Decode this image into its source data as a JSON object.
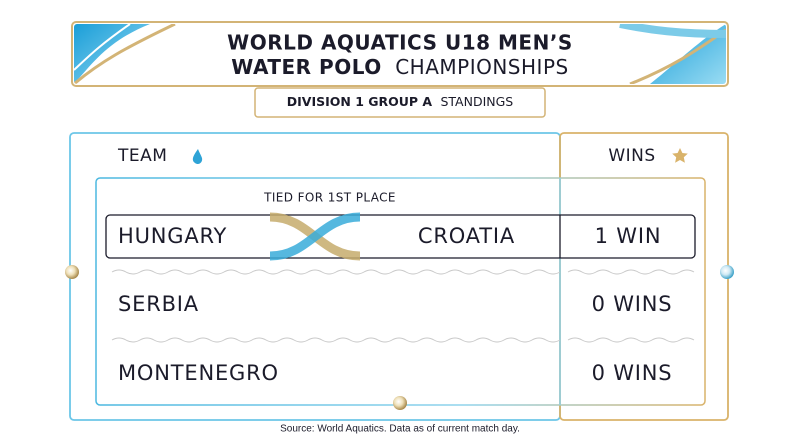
{
  "header": {
    "title_line_1": "WORLD AQUATICS U18 MEN’S",
    "title_line_2_bold": "WATER POLO",
    "title_line_2_light": "CHAMPIONSHIPS",
    "subtitle_bold": "DIVISION 1 GROUP A",
    "subtitle_light": "STANDINGS"
  },
  "table": {
    "headers": [
      "TEAM",
      "WINS"
    ],
    "note": "TIED FOR 1ST PLACE",
    "rows": [
      {
        "teams": [
          "HUNGARY",
          "CROATIA"
        ],
        "wins": "1 WIN"
      },
      {
        "teams": [
          "SERBIA"
        ],
        "wins": "0 WINS"
      },
      {
        "teams": [
          "MONTENEGRO"
        ],
        "wins": "0 WINS"
      }
    ]
  },
  "footer": {
    "source": "Source: World Aquatics. Data as of current match day."
  }
}
